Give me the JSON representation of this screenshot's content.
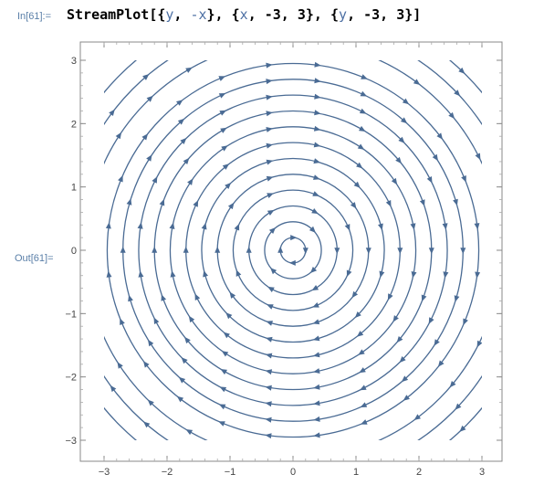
{
  "cell": {
    "input_label": "In[61]:=",
    "output_label": "Out[61]=",
    "code_tokens": [
      {
        "text": "StreamPlot",
        "cls": "fn"
      },
      {
        "text": "[{",
        "cls": "pun"
      },
      {
        "text": "y",
        "cls": "var"
      },
      {
        "text": ", ",
        "cls": "pun"
      },
      {
        "text": "-x",
        "cls": "var"
      },
      {
        "text": "}, {",
        "cls": "pun"
      },
      {
        "text": "x",
        "cls": "var"
      },
      {
        "text": ", -3, 3}, {",
        "cls": "pun"
      },
      {
        "text": "y",
        "cls": "var"
      },
      {
        "text": ", -3, 3}]",
        "cls": "pun"
      }
    ]
  },
  "chart_data": {
    "type": "streamplot",
    "field": {
      "u": "y",
      "v": "-x"
    },
    "xlim": [
      -3,
      3
    ],
    "ylim": [
      -3,
      3
    ],
    "x_ticks": [
      "-3",
      "-2",
      "-1",
      "0",
      "1",
      "2",
      "3"
    ],
    "y_ticks": [
      "-3",
      "-2",
      "-1",
      "0",
      "1",
      "2",
      "3"
    ],
    "stream_radii": [
      0.2,
      0.45,
      0.7,
      0.95,
      1.2,
      1.45,
      1.7,
      1.95,
      2.2,
      2.45,
      2.7,
      2.95,
      3.3,
      3.6,
      3.9
    ],
    "rotation": "clockwise",
    "stream_color": "#4a6b94",
    "frame_color": "#888888"
  }
}
